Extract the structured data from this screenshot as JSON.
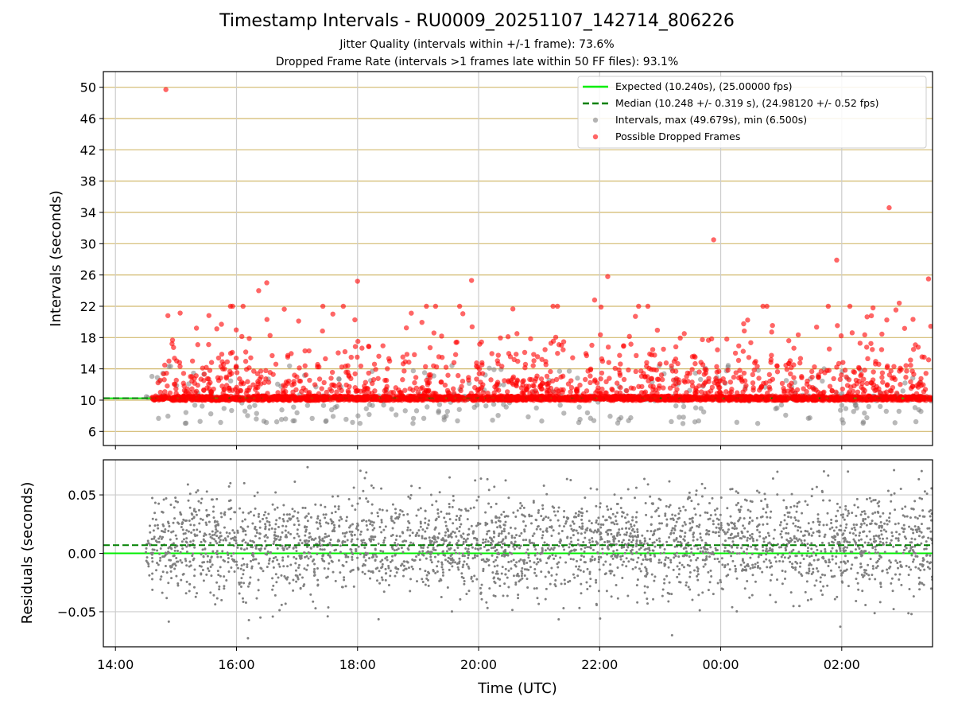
{
  "chart_data": {
    "type": "scatter",
    "title": "Timestamp Intervals - RU0009_20251107_142714_806226",
    "subtitle_lines": [
      "Jitter Quality (intervals within +/-1 frame): 73.6%",
      "Dropped Frame Rate (intervals >1 frames late within 50 FF files): 93.1%"
    ],
    "xlabel": "Time (UTC)",
    "x_ticks": [
      "14:00",
      "16:00",
      "18:00",
      "20:00",
      "22:00",
      "00:00",
      "02:00"
    ],
    "x_range_hours": [
      13.8,
      27.5
    ],
    "top_panel": {
      "ylabel": "Intervals (seconds)",
      "ylim": [
        4.2,
        52.0
      ],
      "y_ticks": [
        6,
        10,
        14,
        18,
        22,
        26,
        30,
        34,
        38,
        42,
        46,
        50
      ],
      "expected_interval": 10.24,
      "median_interval": 10.248,
      "legend": [
        "Expected (10.240s), (25.00000 fps)",
        "Median (10.248 +/- 0.319 s), (24.98120 +/- 0.52 fps)",
        "Intervals, max (49.679s), min (6.500s)",
        "Possible Dropped Frames"
      ],
      "notable_points": [
        {
          "time": "14:50",
          "interval": 49.7
        },
        {
          "time": "02:47",
          "interval": 34.6
        },
        {
          "time": "23:53",
          "interval": 30.5
        },
        {
          "time": "01:55",
          "interval": 27.9
        },
        {
          "time": "22:08",
          "interval": 25.8
        },
        {
          "time": "03:26",
          "interval": 25.5
        },
        {
          "time": "18:00",
          "interval": 25.2
        },
        {
          "time": "19:53",
          "interval": 25.3
        },
        {
          "time": "16:30",
          "interval": 25.0
        },
        {
          "time": "16:22",
          "interval": 24.0
        },
        {
          "time": "21:55",
          "interval": 22.8
        },
        {
          "time": "02:57",
          "interval": 22.4
        },
        {
          "time": "14:52",
          "interval": 20.8
        }
      ]
    },
    "bottom_panel": {
      "ylabel": "Residuals (seconds)",
      "ylim": [
        -0.08,
        0.08
      ],
      "y_ticks": [
        0.05,
        0.0,
        -0.05
      ],
      "y_tick_labels": [
        "0.05",
        "0.00",
        "−0.05"
      ],
      "expected_residual": 0.0,
      "median_residual": 0.007,
      "residual_spread_sd": 0.022
    },
    "colors": {
      "expected": "#00ee00",
      "median": "#008000",
      "intervals": "#808080",
      "dropped": "#ff0000",
      "ygrid_top": "#d2b96e",
      "xgrid": "#cccccc"
    }
  }
}
